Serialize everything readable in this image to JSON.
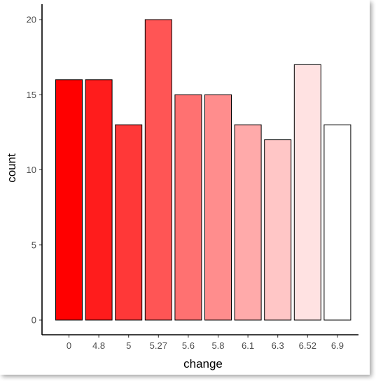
{
  "chart_data": {
    "type": "bar",
    "categories": [
      "0",
      "4.8",
      "5",
      "5.27",
      "5.6",
      "5.8",
      "6.1",
      "6.3",
      "6.52",
      "6.9"
    ],
    "values": [
      16,
      16,
      13,
      20,
      15,
      15,
      13,
      12,
      17,
      13
    ],
    "bar_colors": [
      "#FF0000",
      "#FF1C1C",
      "#FF3838",
      "#FF5555",
      "#FF7171",
      "#FF8D8D",
      "#FFAAAA",
      "#FFC6C6",
      "#FFE2E2",
      "#FFFFFF"
    ],
    "bar_outline": "#000000",
    "xlabel": "change",
    "ylabel": "count",
    "ylim": [
      0,
      20
    ],
    "yticks": [
      "0",
      "5",
      "10",
      "15",
      "20"
    ],
    "grid": false,
    "legend": "none"
  }
}
